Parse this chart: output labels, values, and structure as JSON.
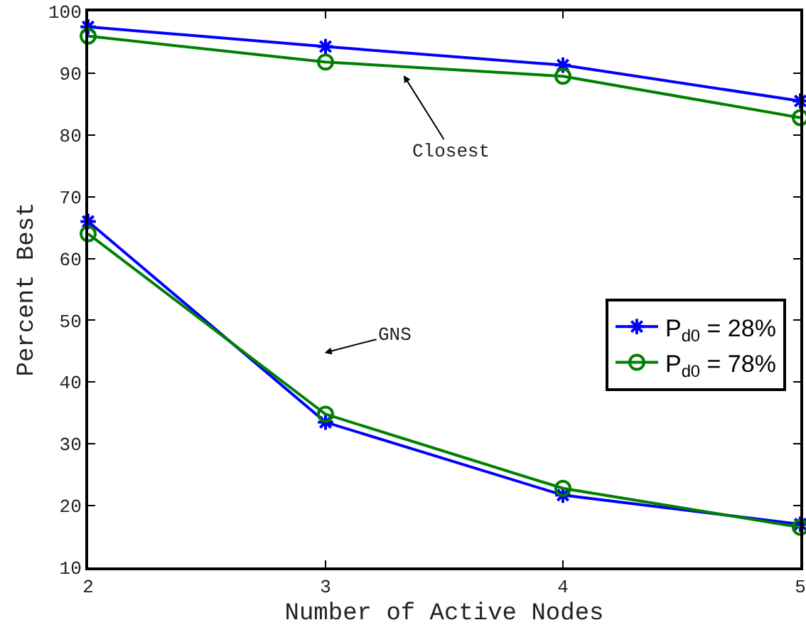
{
  "chart_data": {
    "type": "line",
    "xlabel": "Number of Active Nodes",
    "ylabel": "Percent Best",
    "x": [
      2,
      3,
      4,
      5
    ],
    "xlim": [
      2,
      5
    ],
    "xticks": [
      2,
      3,
      4,
      5
    ],
    "ylim": [
      10,
      100
    ],
    "yticks": [
      10,
      20,
      30,
      40,
      50,
      60,
      70,
      80,
      90,
      100
    ],
    "grid": false,
    "legend": "right",
    "line_style": "solid",
    "series": [
      {
        "name": "P$_{d0}$ = 28%",
        "color": "#0000ff",
        "marker": "cross",
        "values": [
          97.5,
          94.3,
          91.3,
          85.5
        ]
      },
      {
        "name": "P$_{d0}$ = 78%",
        "color": "#008000",
        "marker": "circle",
        "values": [
          96,
          91.8,
          89.5,
          82.8
        ]
      },
      {
        "color": "#0000ff",
        "marker": "cross",
        "values": [
          66,
          33.5,
          21.7,
          17
        ]
      },
      {
        "color": "#008000",
        "marker": "circle",
        "values": [
          64,
          34.8,
          22.8,
          16.5
        ]
      }
    ],
    "annotations": [
      "Closest",
      "GNS"
    ]
  }
}
